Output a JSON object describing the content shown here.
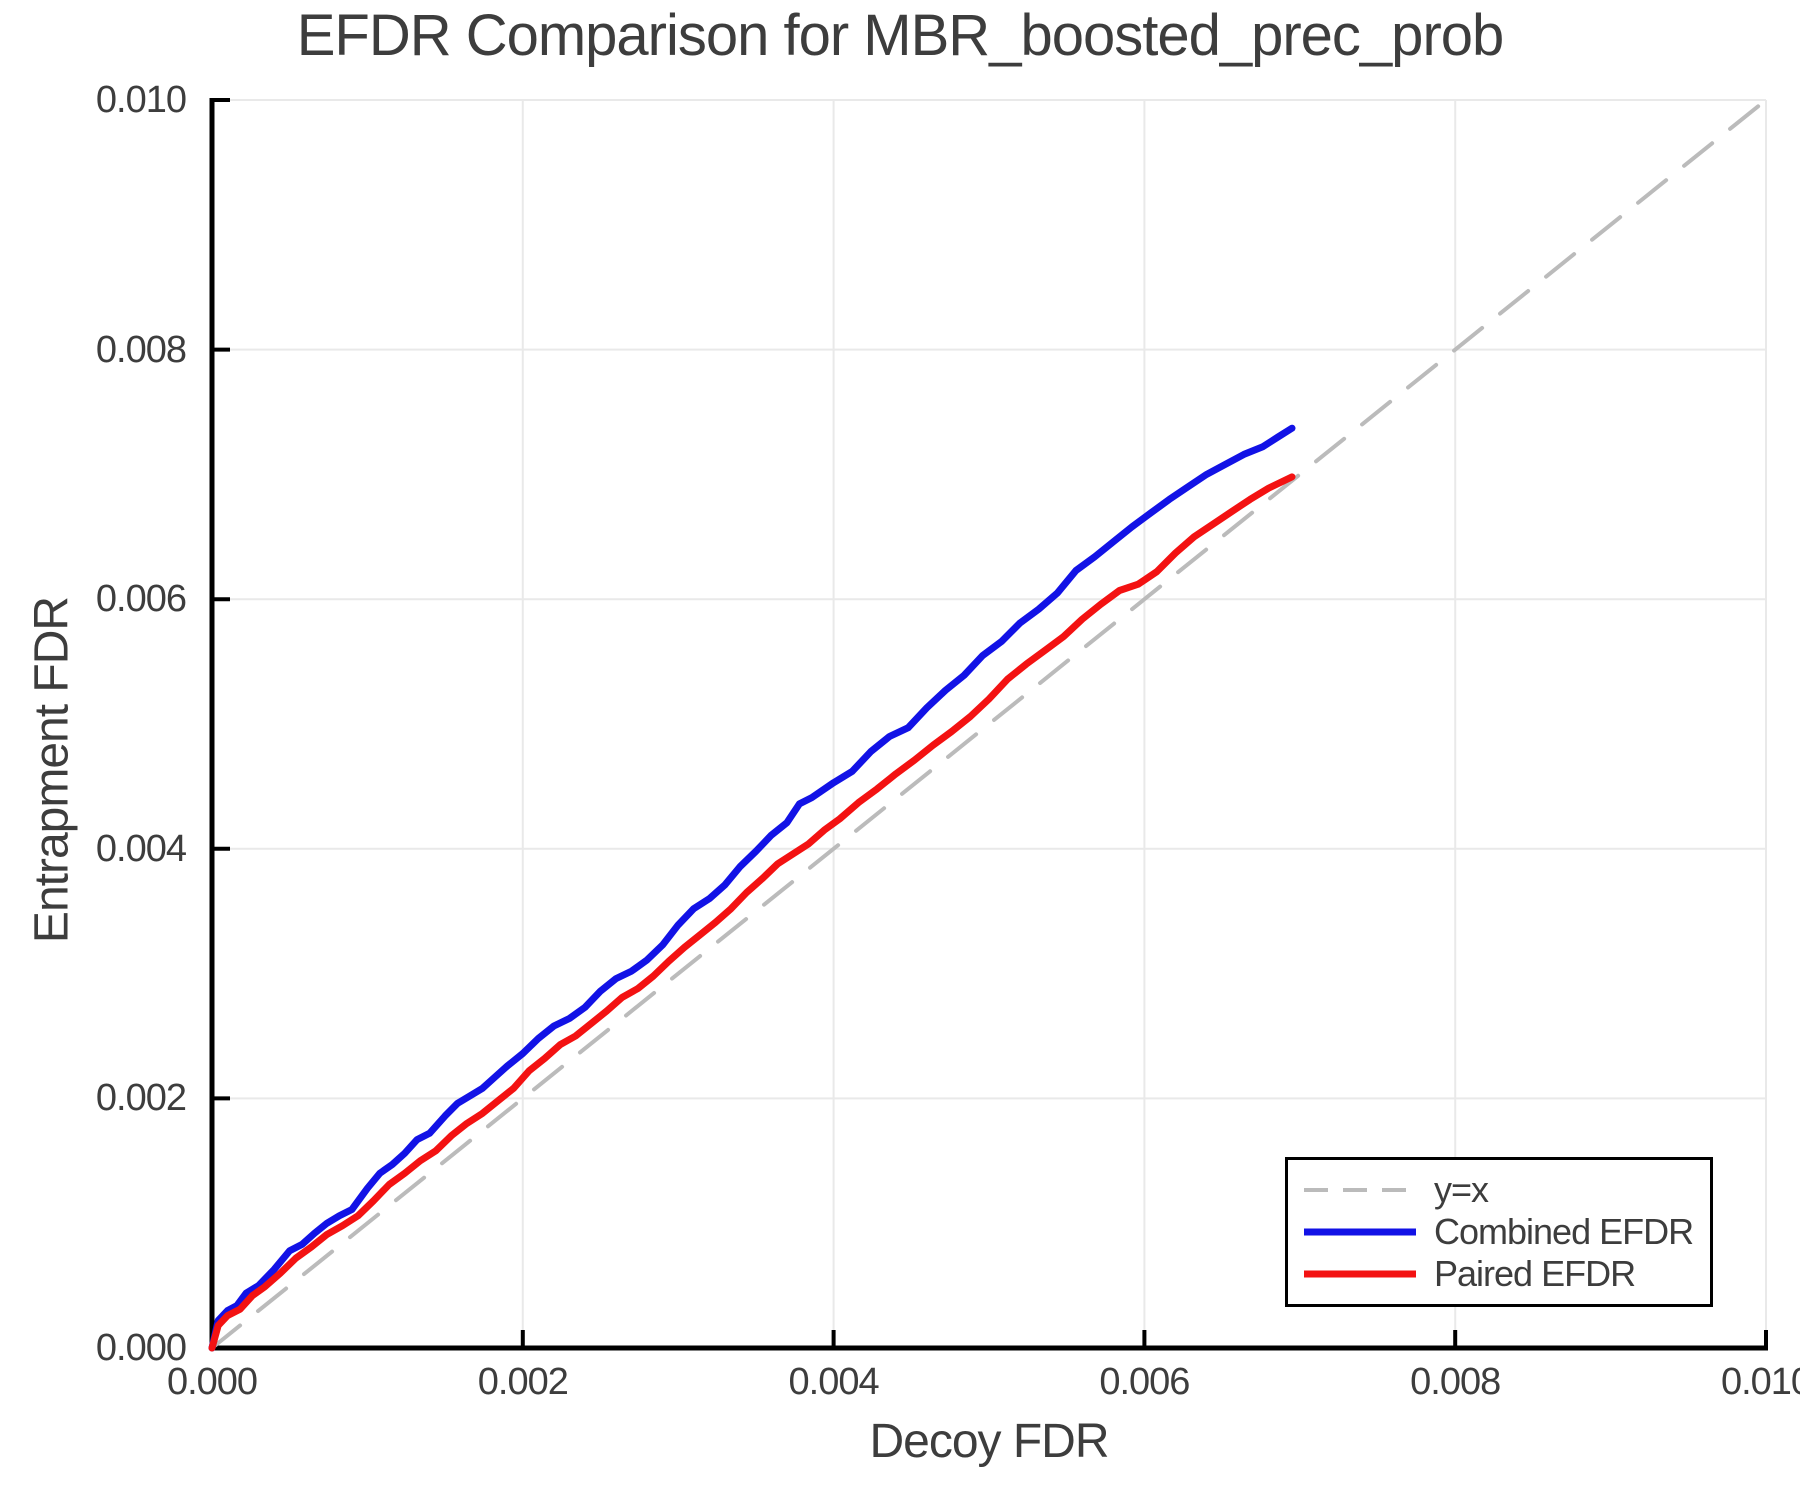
{
  "title": "EFDR Comparison for MBR_boosted_prec_prob",
  "colors": {
    "text": "#3d3d3d",
    "spine": "#000000",
    "grid": "#e9e9e9",
    "diagonal": "#bbbbbb",
    "combined": "#1212e6",
    "paired": "#f31212",
    "background": "#ffffff",
    "legend_border": "#000000"
  },
  "chart_data": {
    "type": "line",
    "title": "EFDR Comparison for MBR_boosted_prec_prob",
    "xlabel": "Decoy FDR",
    "ylabel": "Entrapment FDR",
    "xlim": [
      0.0,
      0.01
    ],
    "ylim": [
      0.0,
      0.01
    ],
    "grid": true,
    "xticks": {
      "values": [
        0.0,
        0.002,
        0.004,
        0.006,
        0.008,
        0.01
      ],
      "labels": [
        "0.000",
        "0.002",
        "0.004",
        "0.006",
        "0.008",
        "0.010"
      ]
    },
    "yticks": {
      "values": [
        0.0,
        0.002,
        0.004,
        0.006,
        0.008,
        0.01
      ],
      "labels": [
        "0.000",
        "0.002",
        "0.004",
        "0.006",
        "0.008",
        "0.010"
      ]
    },
    "legend": {
      "position": "lower right"
    },
    "series": [
      {
        "name": "y=x",
        "style": "dashed",
        "color": "#bbbbbb",
        "width": 4,
        "points": [
          [
            0.0,
            0.0
          ],
          [
            0.01,
            0.01
          ]
        ]
      },
      {
        "name": "Combined EFDR",
        "style": "solid",
        "color": "#1212e6",
        "width": 7,
        "points": [
          [
            0.0,
            0.0
          ],
          [
            4e-05,
            0.00022
          ],
          [
            0.0001,
            0.0003
          ],
          [
            0.00016,
            0.00034
          ],
          [
            0.00022,
            0.00044
          ],
          [
            0.0003,
            0.0005
          ],
          [
            0.0004,
            0.00063
          ],
          [
            0.0005,
            0.00078
          ],
          [
            0.00058,
            0.00083
          ],
          [
            0.00066,
            0.00092
          ],
          [
            0.00074,
            0.001
          ],
          [
            0.00082,
            0.00106
          ],
          [
            0.0009,
            0.00111
          ],
          [
            0.001,
            0.00128
          ],
          [
            0.00108,
            0.0014
          ],
          [
            0.00116,
            0.00147
          ],
          [
            0.00124,
            0.00156
          ],
          [
            0.00132,
            0.00167
          ],
          [
            0.0014,
            0.00172
          ],
          [
            0.0015,
            0.00186
          ],
          [
            0.00158,
            0.00196
          ],
          [
            0.00166,
            0.00202
          ],
          [
            0.00174,
            0.00208
          ],
          [
            0.00182,
            0.00217
          ],
          [
            0.0019,
            0.00226
          ],
          [
            0.002,
            0.00236
          ],
          [
            0.0021,
            0.00248
          ],
          [
            0.0022,
            0.00258
          ],
          [
            0.0023,
            0.00264
          ],
          [
            0.0024,
            0.00273
          ],
          [
            0.0025,
            0.00286
          ],
          [
            0.0026,
            0.00296
          ],
          [
            0.0027,
            0.00302
          ],
          [
            0.0028,
            0.00311
          ],
          [
            0.0029,
            0.00323
          ],
          [
            0.003,
            0.00339
          ],
          [
            0.0031,
            0.00352
          ],
          [
            0.0032,
            0.0036
          ],
          [
            0.0033,
            0.00371
          ],
          [
            0.0034,
            0.00386
          ],
          [
            0.0035,
            0.00398
          ],
          [
            0.0036,
            0.00411
          ],
          [
            0.0037,
            0.00421
          ],
          [
            0.00378,
            0.00436
          ],
          [
            0.00386,
            0.00441
          ],
          [
            0.004,
            0.00453
          ],
          [
            0.00412,
            0.00462
          ],
          [
            0.00424,
            0.00478
          ],
          [
            0.00436,
            0.0049
          ],
          [
            0.00448,
            0.00497
          ],
          [
            0.0046,
            0.00513
          ],
          [
            0.00472,
            0.00527
          ],
          [
            0.00484,
            0.00539
          ],
          [
            0.00496,
            0.00555
          ],
          [
            0.00508,
            0.00566
          ],
          [
            0.0052,
            0.00581
          ],
          [
            0.00532,
            0.00592
          ],
          [
            0.00544,
            0.00605
          ],
          [
            0.00556,
            0.00623
          ],
          [
            0.00568,
            0.00634
          ],
          [
            0.0058,
            0.00646
          ],
          [
            0.00592,
            0.00658
          ],
          [
            0.00604,
            0.00669
          ],
          [
            0.00616,
            0.0068
          ],
          [
            0.00628,
            0.0069
          ],
          [
            0.0064,
            0.007
          ],
          [
            0.00652,
            0.00708
          ],
          [
            0.00664,
            0.00716
          ],
          [
            0.00676,
            0.00722
          ],
          [
            0.00686,
            0.0073
          ],
          [
            0.00695,
            0.00737
          ]
        ]
      },
      {
        "name": "Paired EFDR",
        "style": "solid",
        "color": "#f31212",
        "width": 7,
        "points": [
          [
            0.0,
            0.0
          ],
          [
            4e-05,
            0.00018
          ],
          [
            0.0001,
            0.00026
          ],
          [
            0.00018,
            0.00031
          ],
          [
            0.00026,
            0.00042
          ],
          [
            0.00034,
            0.00049
          ],
          [
            0.00044,
            0.0006
          ],
          [
            0.00054,
            0.00072
          ],
          [
            0.00064,
            0.00081
          ],
          [
            0.00074,
            0.00091
          ],
          [
            0.00084,
            0.00098
          ],
          [
            0.00094,
            0.00106
          ],
          [
            0.00104,
            0.00118
          ],
          [
            0.00114,
            0.00131
          ],
          [
            0.00124,
            0.0014
          ],
          [
            0.00134,
            0.0015
          ],
          [
            0.00144,
            0.00158
          ],
          [
            0.00154,
            0.0017
          ],
          [
            0.00164,
            0.0018
          ],
          [
            0.00174,
            0.00188
          ],
          [
            0.00184,
            0.00198
          ],
          [
            0.00194,
            0.00208
          ],
          [
            0.00204,
            0.00222
          ],
          [
            0.00214,
            0.00232
          ],
          [
            0.00224,
            0.00243
          ],
          [
            0.00234,
            0.0025
          ],
          [
            0.00244,
            0.0026
          ],
          [
            0.00254,
            0.0027
          ],
          [
            0.00264,
            0.00281
          ],
          [
            0.00274,
            0.00288
          ],
          [
            0.00284,
            0.00298
          ],
          [
            0.00294,
            0.0031
          ],
          [
            0.00304,
            0.00321
          ],
          [
            0.00314,
            0.00331
          ],
          [
            0.00324,
            0.00341
          ],
          [
            0.00334,
            0.00352
          ],
          [
            0.00344,
            0.00365
          ],
          [
            0.00354,
            0.00376
          ],
          [
            0.00364,
            0.00388
          ],
          [
            0.00374,
            0.00396
          ],
          [
            0.00384,
            0.00404
          ],
          [
            0.00394,
            0.00415
          ],
          [
            0.00404,
            0.00424
          ],
          [
            0.00416,
            0.00437
          ],
          [
            0.00428,
            0.00448
          ],
          [
            0.0044,
            0.0046
          ],
          [
            0.00452,
            0.00471
          ],
          [
            0.00464,
            0.00483
          ],
          [
            0.00476,
            0.00494
          ],
          [
            0.00488,
            0.00506
          ],
          [
            0.005,
            0.0052
          ],
          [
            0.00512,
            0.00536
          ],
          [
            0.00524,
            0.00548
          ],
          [
            0.00536,
            0.00559
          ],
          [
            0.00548,
            0.0057
          ],
          [
            0.0056,
            0.00584
          ],
          [
            0.00572,
            0.00596
          ],
          [
            0.00584,
            0.00607
          ],
          [
            0.00596,
            0.00612
          ],
          [
            0.00608,
            0.00622
          ],
          [
            0.0062,
            0.00637
          ],
          [
            0.00632,
            0.0065
          ],
          [
            0.00644,
            0.0066
          ],
          [
            0.00656,
            0.0067
          ],
          [
            0.00668,
            0.0068
          ],
          [
            0.0068,
            0.00689
          ],
          [
            0.00695,
            0.00698
          ]
        ]
      }
    ]
  }
}
